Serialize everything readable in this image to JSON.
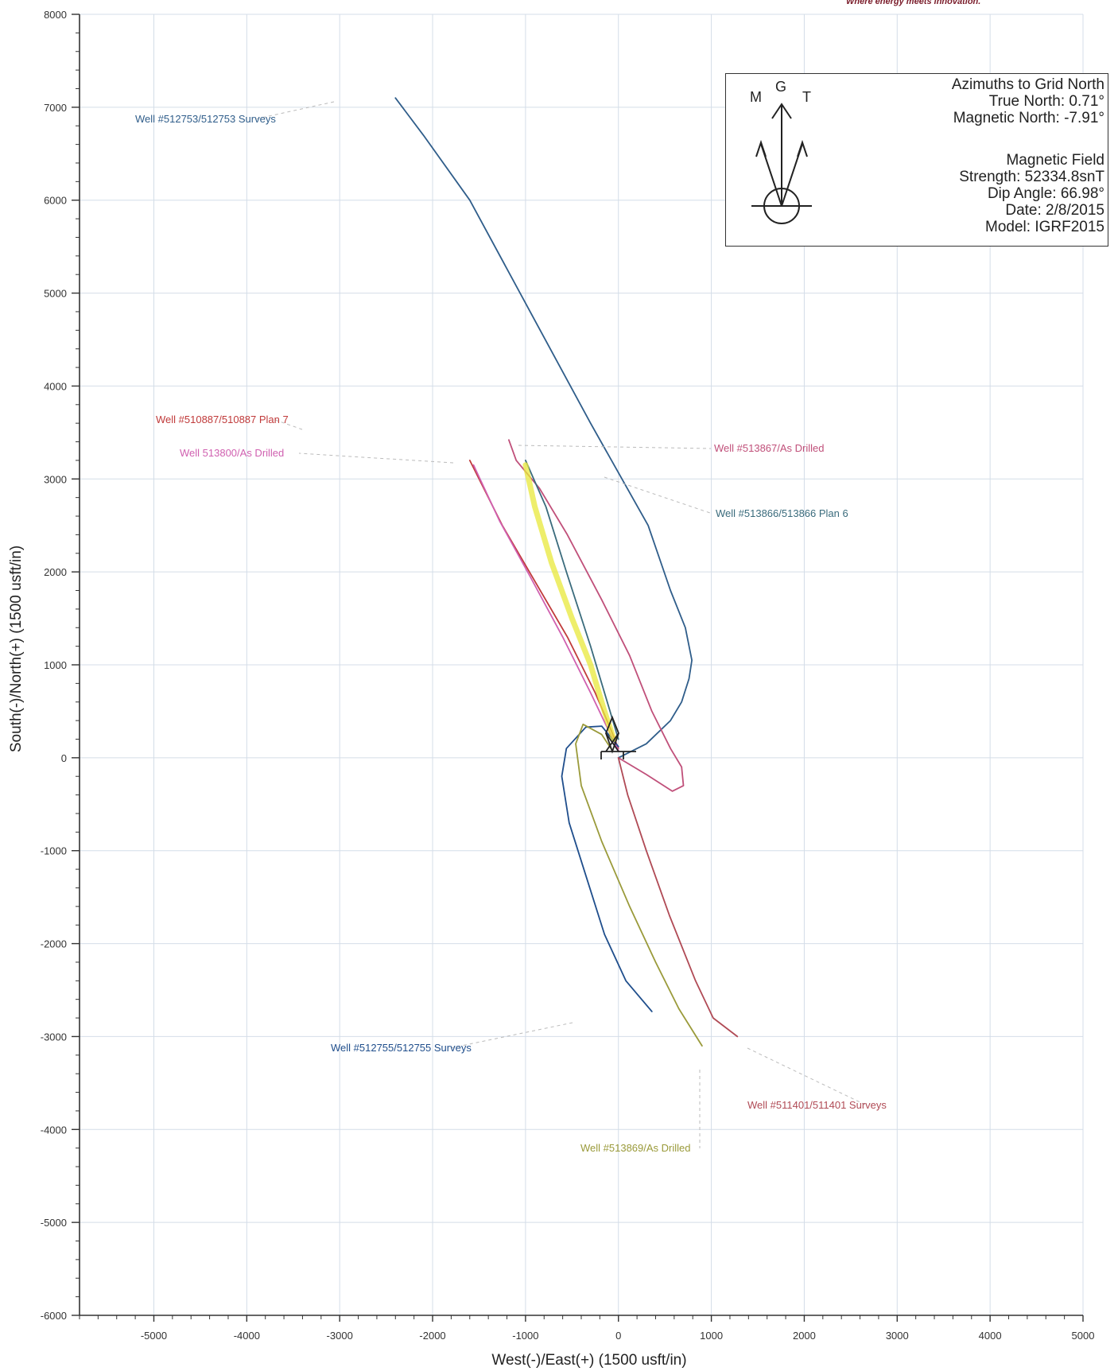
{
  "header": {
    "brand_tagline": "Where energy meets innovation."
  },
  "azimuth_box": {
    "compass_letters": {
      "m": "M",
      "g": "G",
      "t": "T"
    },
    "lines": [
      "Azimuths to Grid North",
      "True North: 0.71°",
      "Magnetic North: -7.91°",
      "Magnetic Field",
      "Strength: 52334.8snT",
      "Dip Angle: 66.98°",
      "Date: 2/8/2015",
      "Model: IGRF2015"
    ]
  },
  "chart_data": {
    "type": "line",
    "xlabel": "West(-)/East(+) (1500 usft/in)",
    "ylabel": "South(-)/North(+) (1500 usft/in)",
    "xlim": [
      -5800,
      5000
    ],
    "ylim": [
      -6000,
      8000
    ],
    "xticks": [
      -5000,
      -4000,
      -3000,
      -2000,
      -1000,
      0,
      1000,
      2000,
      3000,
      4000,
      5000
    ],
    "yticks": [
      8000,
      7000,
      6000,
      5000,
      4000,
      3000,
      2000,
      1000,
      0,
      -1000,
      -2000,
      -3000,
      -4000,
      -5000,
      -6000
    ],
    "grid": true,
    "series": [
      {
        "name": "Well #512753/512753 Surveys",
        "color": "#2f5d8a",
        "points": [
          [
            0,
            0
          ],
          [
            300,
            150
          ],
          [
            560,
            400
          ],
          [
            680,
            600
          ],
          [
            760,
            850
          ],
          [
            790,
            1050
          ],
          [
            720,
            1400
          ],
          [
            560,
            1800
          ],
          [
            320,
            2500
          ],
          [
            -300,
            3600
          ],
          [
            -950,
            4800
          ],
          [
            -1600,
            6000
          ],
          [
            -2100,
            6700
          ],
          [
            -2400,
            7100
          ]
        ]
      },
      {
        "name": "Well #513867/As Drilled",
        "color": "#c0507a",
        "points": [
          [
            0,
            0
          ],
          [
            300,
            -180
          ],
          [
            580,
            -360
          ],
          [
            700,
            -300
          ],
          [
            680,
            -100
          ],
          [
            560,
            100
          ],
          [
            360,
            500
          ],
          [
            120,
            1100
          ],
          [
            -180,
            1700
          ],
          [
            -550,
            2400
          ],
          [
            -850,
            2900
          ],
          [
            -1100,
            3200
          ],
          [
            -1180,
            3420
          ]
        ]
      },
      {
        "name": "Well #513866/513866 Plan 6",
        "color": "#3a6b7c",
        "points": [
          [
            0,
            200
          ],
          [
            -120,
            600
          ],
          [
            -300,
            1200
          ],
          [
            -560,
            2000
          ],
          [
            -780,
            2700
          ],
          [
            -1000,
            3200
          ]
        ]
      },
      {
        "name": "Well #510887/510887 Plan 7",
        "color": "#c03a3a",
        "points": [
          [
            0,
            100
          ],
          [
            -80,
            300
          ],
          [
            -250,
            700
          ],
          [
            -550,
            1300
          ],
          [
            -900,
            1900
          ],
          [
            -1250,
            2500
          ],
          [
            -1600,
            3200
          ]
        ]
      },
      {
        "name": "Well 513800/As Drilled",
        "color": "#d060b0",
        "points": [
          [
            0,
            80
          ],
          [
            -100,
            280
          ],
          [
            -300,
            700
          ],
          [
            -600,
            1300
          ],
          [
            -950,
            1950
          ],
          [
            -1280,
            2550
          ],
          [
            -1560,
            3150
          ]
        ]
      },
      {
        "name": "Well #512755/512755 Surveys",
        "color": "#1f4e8c",
        "points": [
          [
            0,
            120
          ],
          [
            -180,
            340
          ],
          [
            -350,
            330
          ],
          [
            -560,
            100
          ],
          [
            -610,
            -200
          ],
          [
            -530,
            -700
          ],
          [
            -340,
            -1300
          ],
          [
            -150,
            -1900
          ],
          [
            80,
            -2400
          ],
          [
            360,
            -2730
          ]
        ]
      },
      {
        "name": "Well #511401/511401 Surveys",
        "color": "#b04a55",
        "points": [
          [
            0,
            0
          ],
          [
            100,
            -400
          ],
          [
            300,
            -1000
          ],
          [
            550,
            -1700
          ],
          [
            830,
            -2400
          ],
          [
            1020,
            -2800
          ],
          [
            1280,
            -3000
          ]
        ]
      },
      {
        "name": "Well #513869/As Drilled",
        "color": "#9a9a3a",
        "points": [
          [
            -80,
            100
          ],
          [
            -180,
            250
          ],
          [
            -380,
            360
          ],
          [
            -460,
            150
          ],
          [
            -400,
            -300
          ],
          [
            -180,
            -900
          ],
          [
            120,
            -1600
          ],
          [
            400,
            -2200
          ],
          [
            650,
            -2700
          ],
          [
            900,
            -3100
          ]
        ]
      },
      {
        "name": "",
        "color": "#e8e83a",
        "points": [
          [
            -1000,
            3150
          ],
          [
            -900,
            2700
          ],
          [
            -720,
            2100
          ],
          [
            -500,
            1500
          ],
          [
            -300,
            1000
          ],
          [
            -150,
            500
          ],
          [
            -50,
            200
          ]
        ]
      }
    ]
  }
}
